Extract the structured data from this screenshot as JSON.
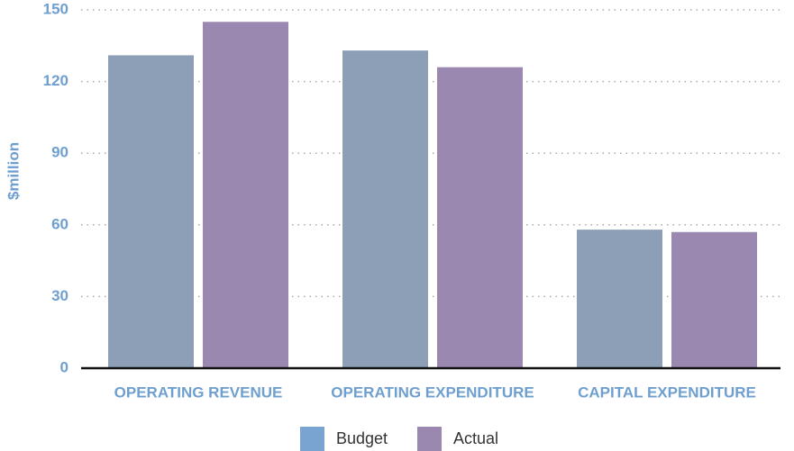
{
  "chart_data": {
    "type": "bar",
    "y_label": "$million",
    "categories": [
      "OPERATING REVENUE",
      "OPERATING EXPENDITURE",
      "CAPITAL EXPENDITURE"
    ],
    "series": [
      {
        "name": "Budget",
        "color": "#8d9fb7",
        "legend_color": "#79a3d0",
        "values": [
          131,
          133,
          58
        ]
      },
      {
        "name": "Actual",
        "color": "#9a88b0",
        "legend_color": "#9a88b0",
        "values": [
          145,
          126,
          57
        ]
      }
    ],
    "ylim": [
      0,
      150
    ],
    "yticks": [
      0,
      30,
      60,
      90,
      120,
      150
    ],
    "grid": true
  }
}
